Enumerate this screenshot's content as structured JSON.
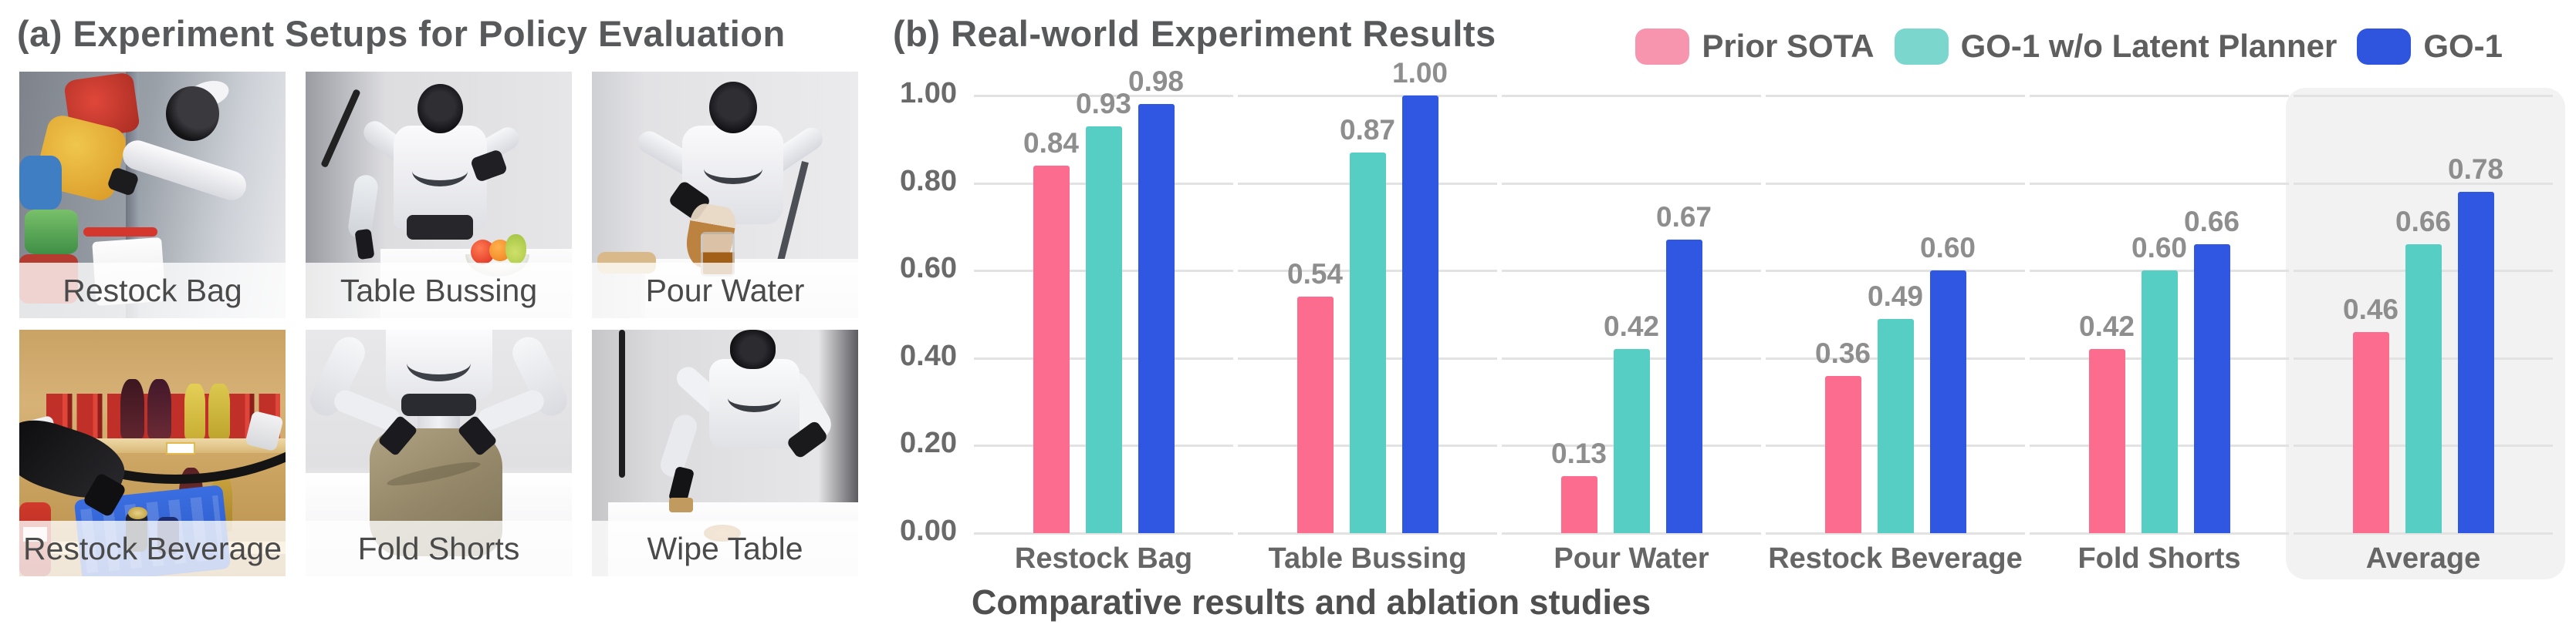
{
  "panel_a": {
    "title": "(a) Experiment Setups for Policy Evaluation",
    "tiles": [
      {
        "label": "Restock Bag"
      },
      {
        "label": "Table Bussing"
      },
      {
        "label": "Pour Water"
      },
      {
        "label": "Restock Beverage"
      },
      {
        "label": "Fold Shorts"
      },
      {
        "label": "Wipe Table"
      }
    ]
  },
  "panel_b": {
    "title": "(b) Real-world Experiment Results",
    "caption": "Comparative results and ablation studies"
  },
  "chart_data": {
    "type": "bar",
    "title": "(b) Real-world Experiment Results",
    "categories": [
      "Restock Bag",
      "Table Bussing",
      "Pour Water",
      "Restock Beverage",
      "Fold Shorts",
      "Average"
    ],
    "series": [
      {
        "name": "Prior SOTA",
        "color": "#FB6C8F",
        "legend_color": "#F795AF",
        "values": [
          0.84,
          0.54,
          0.13,
          0.36,
          0.42,
          0.46
        ]
      },
      {
        "name": "GO-1 w/o Latent Planner",
        "color": "#56CEC3",
        "legend_color": "#7BD7CD",
        "values": [
          0.93,
          0.87,
          0.42,
          0.49,
          0.6,
          0.66
        ]
      },
      {
        "name": "GO-1",
        "color": "#2F57E2",
        "legend_color": "#2F55DF",
        "values": [
          0.98,
          1.0,
          0.67,
          0.6,
          0.66,
          0.78
        ]
      }
    ],
    "xlabel": "",
    "ylabel": "",
    "ylim": [
      0,
      1.0
    ],
    "yticks": [
      "0.00",
      "0.20",
      "0.40",
      "0.60",
      "0.80",
      "1.00"
    ],
    "grid": true,
    "value_labels": true,
    "legend_position": "top-right",
    "highlight_category": "Average",
    "highlight_bg": "#F2F2F3",
    "gridline_color": "#E2E2E2"
  }
}
